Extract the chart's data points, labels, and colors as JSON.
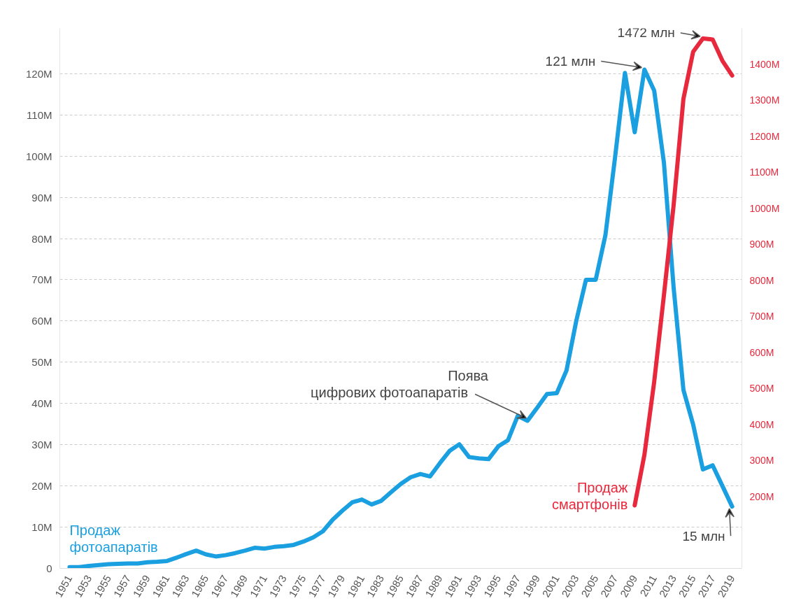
{
  "chart_data": {
    "type": "line",
    "x": [
      1951,
      1952,
      1953,
      1954,
      1955,
      1956,
      1957,
      1958,
      1959,
      1960,
      1961,
      1962,
      1963,
      1964,
      1965,
      1966,
      1967,
      1968,
      1969,
      1970,
      1971,
      1972,
      1973,
      1974,
      1975,
      1976,
      1977,
      1978,
      1979,
      1980,
      1981,
      1982,
      1983,
      1984,
      1985,
      1986,
      1987,
      1988,
      1989,
      1990,
      1991,
      1992,
      1993,
      1994,
      1995,
      1996,
      1997,
      1998,
      1999,
      2000,
      2001,
      2002,
      2003,
      2004,
      2005,
      2006,
      2007,
      2008,
      2009,
      2010,
      2011,
      2012,
      2013,
      2014,
      2015,
      2016,
      2017,
      2018,
      2019
    ],
    "series": [
      {
        "name": "Продаж\nфотоапаратів",
        "color": "#1a9fe0",
        "values": [
          0.3,
          0.3,
          0.6,
          0.8,
          1.0,
          1.1,
          1.2,
          1.2,
          1.5,
          1.6,
          1.8,
          2.6,
          3.5,
          4.3,
          3.4,
          2.9,
          3.2,
          3.7,
          4.3,
          5.0,
          4.8,
          5.2,
          5.4,
          5.7,
          6.5,
          7.5,
          9.0,
          11.8,
          14.0,
          16.0,
          16.7,
          15.5,
          16.4,
          18.5,
          20.5,
          22.1,
          22.9,
          22.3,
          25.5,
          28.5,
          30.1,
          27.0,
          26.7,
          26.5,
          29.6,
          31.1,
          37.0,
          35.8,
          39.0,
          42.3,
          42.5,
          48.0,
          60.0,
          70.0,
          70.0,
          80.9,
          100.0,
          120.2,
          105.8,
          121,
          115.9,
          98.4,
          68.0,
          43.3,
          34.9,
          24.0,
          25.0,
          20.0,
          15
        ],
        "value_labels": [
          null,
          null,
          null,
          null,
          null,
          null,
          null,
          null,
          null,
          null,
          null,
          null,
          null,
          null,
          null,
          null,
          null,
          null,
          null,
          null,
          null,
          null,
          null,
          null,
          null,
          null,
          null,
          null,
          null,
          null,
          null,
          null,
          null,
          null,
          null,
          null,
          null,
          null,
          null,
          null,
          null,
          null,
          null,
          null,
          null,
          null,
          null,
          null,
          null,
          null,
          null,
          null,
          null,
          null,
          null,
          null,
          null,
          null,
          null,
          "121 млн",
          null,
          null,
          null,
          null,
          null,
          null,
          null,
          null,
          "15 млн"
        ]
      },
      {
        "name": "Продаж\nсмартфонів",
        "color": "#e8283c",
        "axis": "y2",
        "x": [
          2009,
          2010,
          2011,
          2012,
          2013,
          2014,
          2015,
          2016,
          2017,
          2018,
          2019
        ],
        "values": [
          175,
          316,
          518,
          759,
          1010,
          1304,
          1435,
          1472,
          1469,
          1410,
          1369
        ],
        "value_labels": [
          null,
          null,
          null,
          null,
          null,
          null,
          null,
          "1472 млн",
          null,
          null,
          null
        ]
      }
    ],
    "annotations": [
      {
        "text": "Поява\nцифрових фотоапаратів",
        "x": 1998,
        "y": 35.8
      }
    ],
    "xlim": [
      1950,
      2020
    ],
    "xticks": [
      1951,
      1953,
      1955,
      1957,
      1959,
      1961,
      1963,
      1965,
      1967,
      1969,
      1971,
      1973,
      1975,
      1977,
      1979,
      1981,
      1983,
      1985,
      1987,
      1989,
      1991,
      1993,
      1995,
      1997,
      1999,
      2001,
      2003,
      2005,
      2007,
      2009,
      2011,
      2013,
      2015,
      2017,
      2019
    ],
    "ylim": [
      0,
      131
    ],
    "yticks": [
      0,
      {
        "value": 10,
        "label": "10M"
      },
      {
        "value": 20,
        "label": "20M"
      },
      {
        "value": 30,
        "label": "30M"
      },
      {
        "value": 40,
        "label": "40M"
      },
      {
        "value": 50,
        "label": "50M"
      },
      {
        "value": 60,
        "label": "60M"
      },
      {
        "value": 70,
        "label": "70M"
      },
      {
        "value": 80,
        "label": "80M"
      },
      {
        "value": 90,
        "label": "90M"
      },
      {
        "value": 100,
        "label": "100M"
      },
      {
        "value": 110,
        "label": "110M"
      },
      {
        "value": 120,
        "label": "120M"
      }
    ],
    "y2lim": [
      0,
      1500
    ],
    "y2ticks": [
      {
        "value": 200,
        "label": "200M"
      },
      {
        "value": 300,
        "label": "300M"
      },
      {
        "value": 400,
        "label": "400M"
      },
      {
        "value": 500,
        "label": "500M"
      },
      {
        "value": 600,
        "label": "600M"
      },
      {
        "value": 700,
        "label": "700M"
      },
      {
        "value": 800,
        "label": "800M"
      },
      {
        "value": 900,
        "label": "900M"
      },
      {
        "value": 1000,
        "label": "1000M"
      },
      {
        "value": 1100,
        "label": "1100M"
      },
      {
        "value": 1200,
        "label": "1200M"
      },
      {
        "value": 1300,
        "label": "1300M"
      },
      {
        "value": 1400,
        "label": "1400M"
      }
    ],
    "grid": "y",
    "marker": "none",
    "line_style": "solid"
  }
}
